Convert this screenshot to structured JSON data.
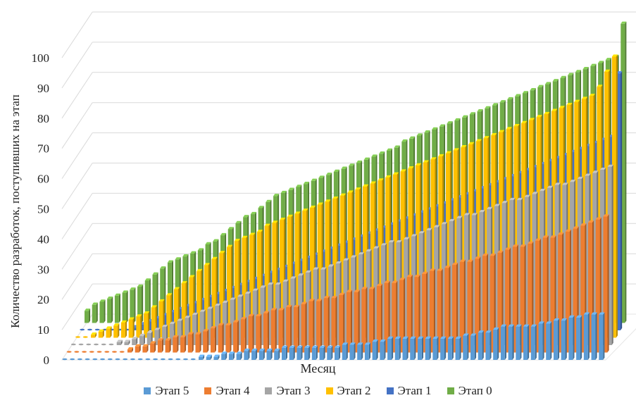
{
  "chart_data": {
    "type": "bar",
    "style": "3d-stacked-columns",
    "title": "",
    "xlabel": "Месяц",
    "ylabel": "Количество разработок, поступивших на этап",
    "ylim": [
      0,
      100
    ],
    "yticks": [
      0,
      10,
      20,
      30,
      40,
      50,
      60,
      70,
      80,
      90,
      100
    ],
    "grid": true,
    "legend_position": "bottom",
    "months": 72,
    "series": [
      {
        "name": "Этап 5",
        "color": "#5B9BD5",
        "values": [
          0,
          0,
          0,
          0,
          0,
          0,
          0,
          0,
          0,
          0,
          0,
          0,
          0,
          0,
          0,
          0,
          0,
          0,
          1,
          1,
          1,
          2,
          2,
          2,
          3,
          3,
          3,
          3,
          3,
          4,
          4,
          4,
          4,
          4,
          4,
          4,
          4,
          5,
          5,
          5,
          5,
          6,
          6,
          7,
          7,
          7,
          7,
          7,
          7,
          7,
          7,
          7,
          7,
          8,
          8,
          9,
          9,
          10,
          11,
          11,
          11,
          11,
          11,
          12,
          12,
          13,
          13,
          14,
          14,
          15,
          15,
          15
        ]
      },
      {
        "name": "Этап 4",
        "color": "#ED7D31",
        "values": [
          0,
          0,
          0,
          0,
          0,
          0,
          0,
          0,
          1,
          2,
          2,
          3,
          4,
          4,
          5,
          5,
          6,
          6,
          7,
          8,
          9,
          9,
          10,
          11,
          12,
          12,
          13,
          14,
          14,
          15,
          15,
          16,
          17,
          17,
          18,
          18,
          19,
          20,
          20,
          21,
          21,
          22,
          23,
          23,
          24,
          25,
          25,
          26,
          27,
          27,
          28,
          29,
          30,
          30,
          31,
          32,
          32,
          33,
          34,
          35,
          35,
          36,
          37,
          38,
          38,
          39,
          40,
          41,
          42,
          43,
          44,
          45
        ]
      },
      {
        "name": "Этап 3",
        "color": "#A5A5A5",
        "values": [
          0,
          0,
          0,
          0,
          0,
          0,
          1,
          1,
          2,
          3,
          4,
          5,
          6,
          7,
          8,
          9,
          10,
          11,
          12,
          13,
          14,
          15,
          16,
          17,
          18,
          19,
          20,
          20,
          21,
          22,
          23,
          24,
          25,
          25,
          26,
          27,
          28,
          29,
          30,
          31,
          32,
          33,
          34,
          34,
          35,
          36,
          37,
          38,
          39,
          40,
          41,
          42,
          43,
          43,
          44,
          45,
          46,
          47,
          48,
          48,
          49,
          50,
          51,
          52,
          53,
          53,
          54,
          55,
          56,
          57,
          58,
          59
        ]
      },
      {
        "name": "Этап 2",
        "color": "#FFC000",
        "values": [
          0,
          0,
          1,
          2,
          3,
          4,
          5,
          6,
          7,
          8,
          10,
          12,
          14,
          16,
          18,
          20,
          22,
          24,
          26,
          28,
          30,
          32,
          33,
          34,
          35,
          37,
          38,
          39,
          40,
          41,
          42,
          43,
          44,
          45,
          46,
          47,
          48,
          49,
          50,
          51,
          52,
          53,
          54,
          55,
          56,
          57,
          58,
          59,
          60,
          61,
          62,
          63,
          64,
          65,
          66,
          67,
          68,
          69,
          70,
          71,
          72,
          73,
          74,
          75,
          76,
          77,
          78,
          79,
          80,
          83,
          88,
          93
        ]
      },
      {
        "name": "Этап 1",
        "color": "#4472C4",
        "values": [
          0,
          0,
          0,
          0,
          0,
          0,
          0,
          1,
          2,
          3,
          4,
          5,
          6,
          7,
          8,
          9,
          10,
          11,
          12,
          13,
          14,
          15,
          16,
          17,
          18,
          19,
          20,
          21,
          22,
          23,
          24,
          25,
          26,
          27,
          28,
          29,
          30,
          31,
          32,
          33,
          34,
          35,
          36,
          37,
          38,
          39,
          40,
          41,
          42,
          43,
          44,
          45,
          46,
          47,
          48,
          49,
          50,
          51,
          52,
          53,
          54,
          55,
          56,
          57,
          58,
          59,
          60,
          61,
          62,
          63,
          64,
          85
        ]
      },
      {
        "name": "Этап  0",
        "color": "#70AD47",
        "values": [
          4,
          6,
          7,
          8,
          9,
          10,
          11,
          12,
          14,
          16,
          18,
          20,
          21,
          22,
          23,
          24,
          26,
          27,
          29,
          31,
          33,
          35,
          36,
          38,
          40,
          42,
          43,
          44,
          45,
          46,
          47,
          48,
          49,
          50,
          51,
          52,
          53,
          54,
          55,
          56,
          57,
          58,
          60,
          61,
          62,
          63,
          64,
          65,
          66,
          67,
          68,
          69,
          70,
          71,
          72,
          73,
          74,
          75,
          76,
          77,
          78,
          79,
          80,
          81,
          82,
          83,
          84,
          85,
          86,
          87,
          88,
          99
        ]
      }
    ]
  }
}
